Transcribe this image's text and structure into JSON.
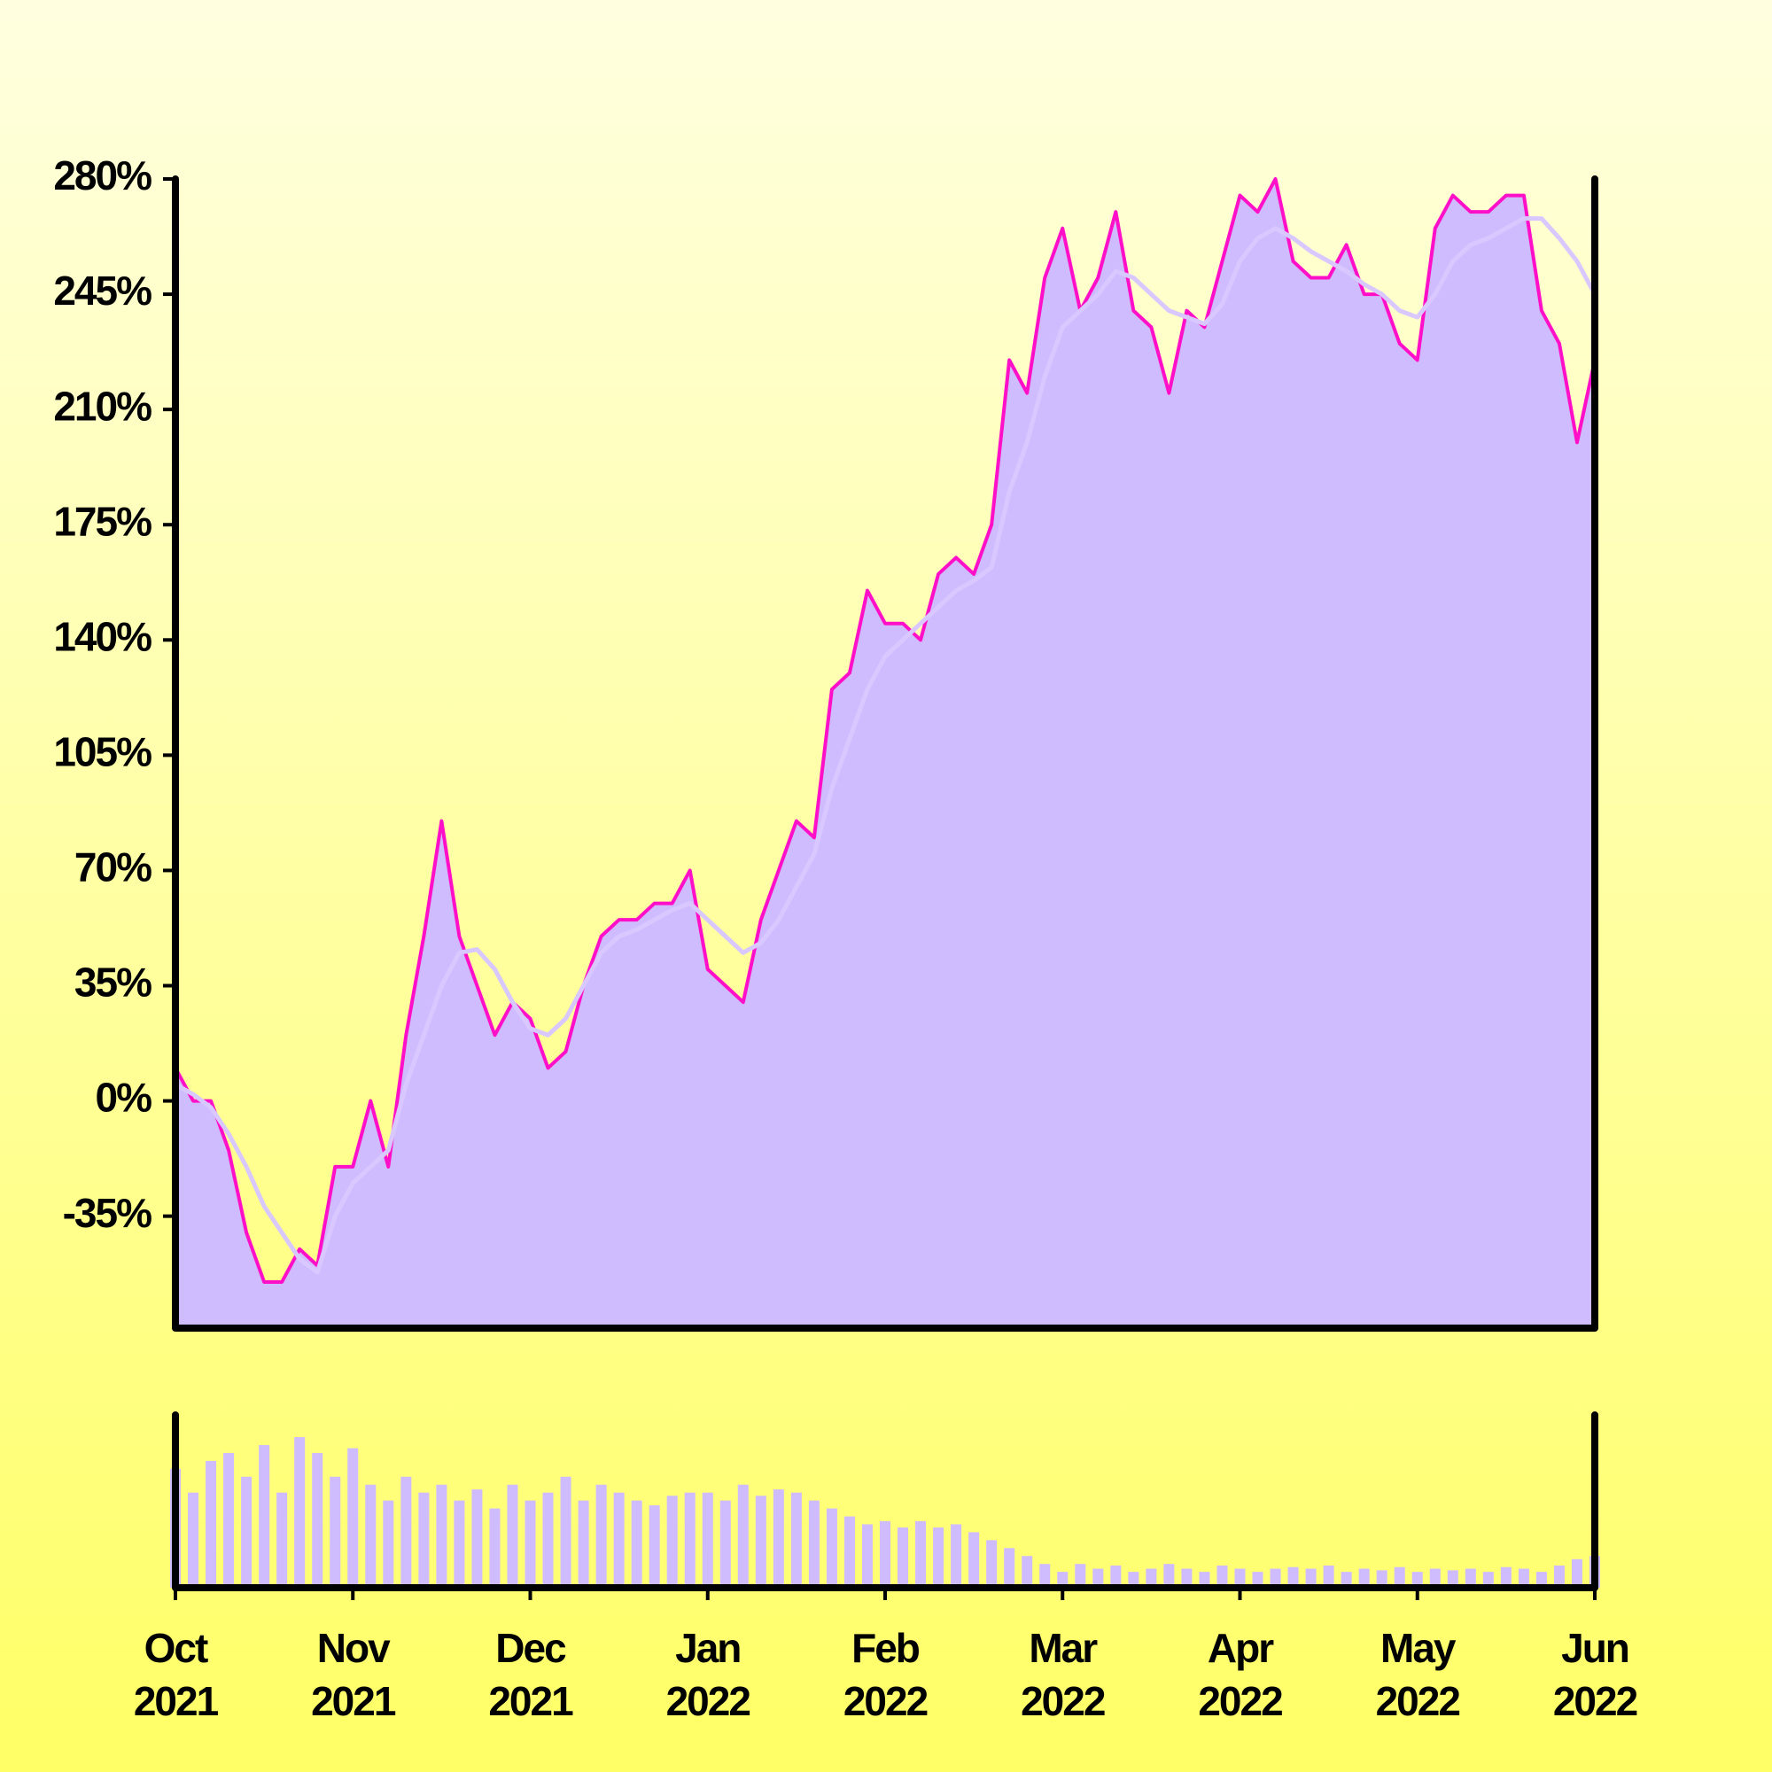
{
  "chart_data": [
    {
      "type": "area",
      "x": [
        0,
        0.1,
        0.2,
        0.3,
        0.4,
        0.5,
        0.6,
        0.7,
        0.8,
        0.9,
        1,
        1.1,
        1.2,
        1.3,
        1.4,
        1.5,
        1.6,
        1.7,
        1.8,
        1.9,
        2,
        2.1,
        2.2,
        2.3,
        2.4,
        2.5,
        2.6,
        2.7,
        2.8,
        2.9,
        3,
        3.1,
        3.2,
        3.3,
        3.4,
        3.5,
        3.6,
        3.7,
        3.8,
        3.9,
        4,
        4.1,
        4.2,
        4.3,
        4.4,
        4.5,
        4.6,
        4.7,
        4.8,
        4.9,
        5,
        5.1,
        5.2,
        5.3,
        5.4,
        5.5,
        5.6,
        5.7,
        5.8,
        5.9,
        6,
        6.1,
        6.2,
        6.3,
        6.4,
        6.5,
        6.6,
        6.7,
        6.8,
        6.9,
        7,
        7.1,
        7.2,
        7.3,
        7.4,
        7.5,
        7.6,
        7.7,
        7.8,
        7.9,
        8
      ],
      "series": [
        {
          "color": "#ff10c8",
          "fill": "#cfbcff",
          "values": [
            10,
            0,
            0,
            -15,
            -40,
            -55,
            -55,
            -45,
            -50,
            -20,
            -20,
            0,
            -20,
            20,
            50,
            85,
            50,
            35,
            20,
            30,
            25,
            10,
            15,
            35,
            50,
            55,
            55,
            60,
            60,
            70,
            40,
            35,
            30,
            55,
            70,
            85,
            80,
            125,
            130,
            155,
            145,
            145,
            140,
            160,
            165,
            160,
            175,
            225,
            215,
            250,
            265,
            240,
            250,
            270,
            240,
            235,
            215,
            240,
            235,
            255,
            275,
            270,
            280,
            255,
            250,
            250,
            260,
            245,
            245,
            230,
            225,
            265,
            275,
            270,
            270,
            275,
            275,
            240,
            230,
            200,
            225
          ]
        },
        {
          "color": "#d8c8ff",
          "values": [
            5,
            2,
            -2,
            -10,
            -20,
            -32,
            -40,
            -48,
            -52,
            -35,
            -25,
            -20,
            -15,
            5,
            20,
            35,
            45,
            46,
            40,
            30,
            22,
            20,
            25,
            35,
            45,
            50,
            52,
            55,
            58,
            60,
            55,
            50,
            45,
            48,
            55,
            65,
            75,
            95,
            110,
            125,
            135,
            140,
            145,
            150,
            155,
            158,
            162,
            185,
            200,
            220,
            235,
            240,
            245,
            252,
            250,
            245,
            240,
            238,
            236,
            242,
            255,
            262,
            265,
            262,
            258,
            255,
            252,
            248,
            245,
            240,
            238,
            245,
            255,
            260,
            262,
            265,
            268,
            268,
            262,
            255,
            245
          ]
        }
      ],
      "xlim": [
        0,
        8
      ],
      "ylim": [
        -69,
        280
      ],
      "yticks": [
        {
          "value": 280,
          "label": "280%"
        },
        {
          "value": 245,
          "label": "245%"
        },
        {
          "value": 210,
          "label": "210%"
        },
        {
          "value": 175,
          "label": "175%"
        },
        {
          "value": 140,
          "label": "140%"
        },
        {
          "value": 105,
          "label": "105%"
        },
        {
          "value": 70,
          "label": "70%"
        },
        {
          "value": 35,
          "label": "35%"
        },
        {
          "value": 0,
          "label": "0%"
        },
        {
          "value": -35,
          "label": "-35%"
        }
      ]
    },
    {
      "type": "bar",
      "color": "#cfbcff",
      "x": [
        0,
        0.1,
        0.2,
        0.3,
        0.4,
        0.5,
        0.6,
        0.7,
        0.8,
        0.9,
        1,
        1.1,
        1.2,
        1.3,
        1.4,
        1.5,
        1.6,
        1.7,
        1.8,
        1.9,
        2,
        2.1,
        2.2,
        2.3,
        2.4,
        2.5,
        2.6,
        2.7,
        2.8,
        2.9,
        3,
        3.1,
        3.2,
        3.3,
        3.4,
        3.5,
        3.6,
        3.7,
        3.8,
        3.9,
        4,
        4.1,
        4.2,
        4.3,
        4.4,
        4.5,
        4.6,
        4.7,
        4.8,
        4.9,
        5,
        5.1,
        5.2,
        5.3,
        5.4,
        5.5,
        5.6,
        5.7,
        5.8,
        5.9,
        6,
        6.1,
        6.2,
        6.3,
        6.4,
        6.5,
        6.6,
        6.7,
        6.8,
        6.9,
        7,
        7.1,
        7.2,
        7.3,
        7.4,
        7.5,
        7.6,
        7.7,
        7.8,
        7.9,
        8
      ],
      "values": [
        75,
        60,
        80,
        85,
        70,
        90,
        60,
        95,
        85,
        70,
        88,
        65,
        55,
        70,
        60,
        65,
        55,
        62,
        50,
        65,
        55,
        60,
        70,
        55,
        65,
        60,
        55,
        52,
        58,
        60,
        60,
        55,
        65,
        58,
        62,
        60,
        55,
        50,
        45,
        40,
        42,
        38,
        42,
        38,
        40,
        35,
        30,
        25,
        20,
        15,
        10,
        15,
        12,
        14,
        10,
        12,
        15,
        12,
        10,
        14,
        12,
        10,
        12,
        13,
        12,
        14,
        10,
        12,
        11,
        13,
        10,
        12,
        11,
        12,
        10,
        13,
        12,
        10,
        14,
        18,
        20
      ],
      "xlim": [
        0,
        8
      ],
      "ylim": [
        0,
        109
      ],
      "xticks": [
        {
          "value": 0,
          "label": "Oct 2021"
        },
        {
          "value": 1,
          "label": "Nov 2021"
        },
        {
          "value": 2,
          "label": "Dec 2021"
        },
        {
          "value": 3,
          "label": "Jan 2022"
        },
        {
          "value": 4,
          "label": "Feb 2022"
        },
        {
          "value": 5,
          "label": "Mar 2022"
        },
        {
          "value": 6,
          "label": "Apr 2022"
        },
        {
          "value": 7,
          "label": "May 2022"
        },
        {
          "value": 8,
          "label": "Jun 2022"
        }
      ]
    }
  ]
}
